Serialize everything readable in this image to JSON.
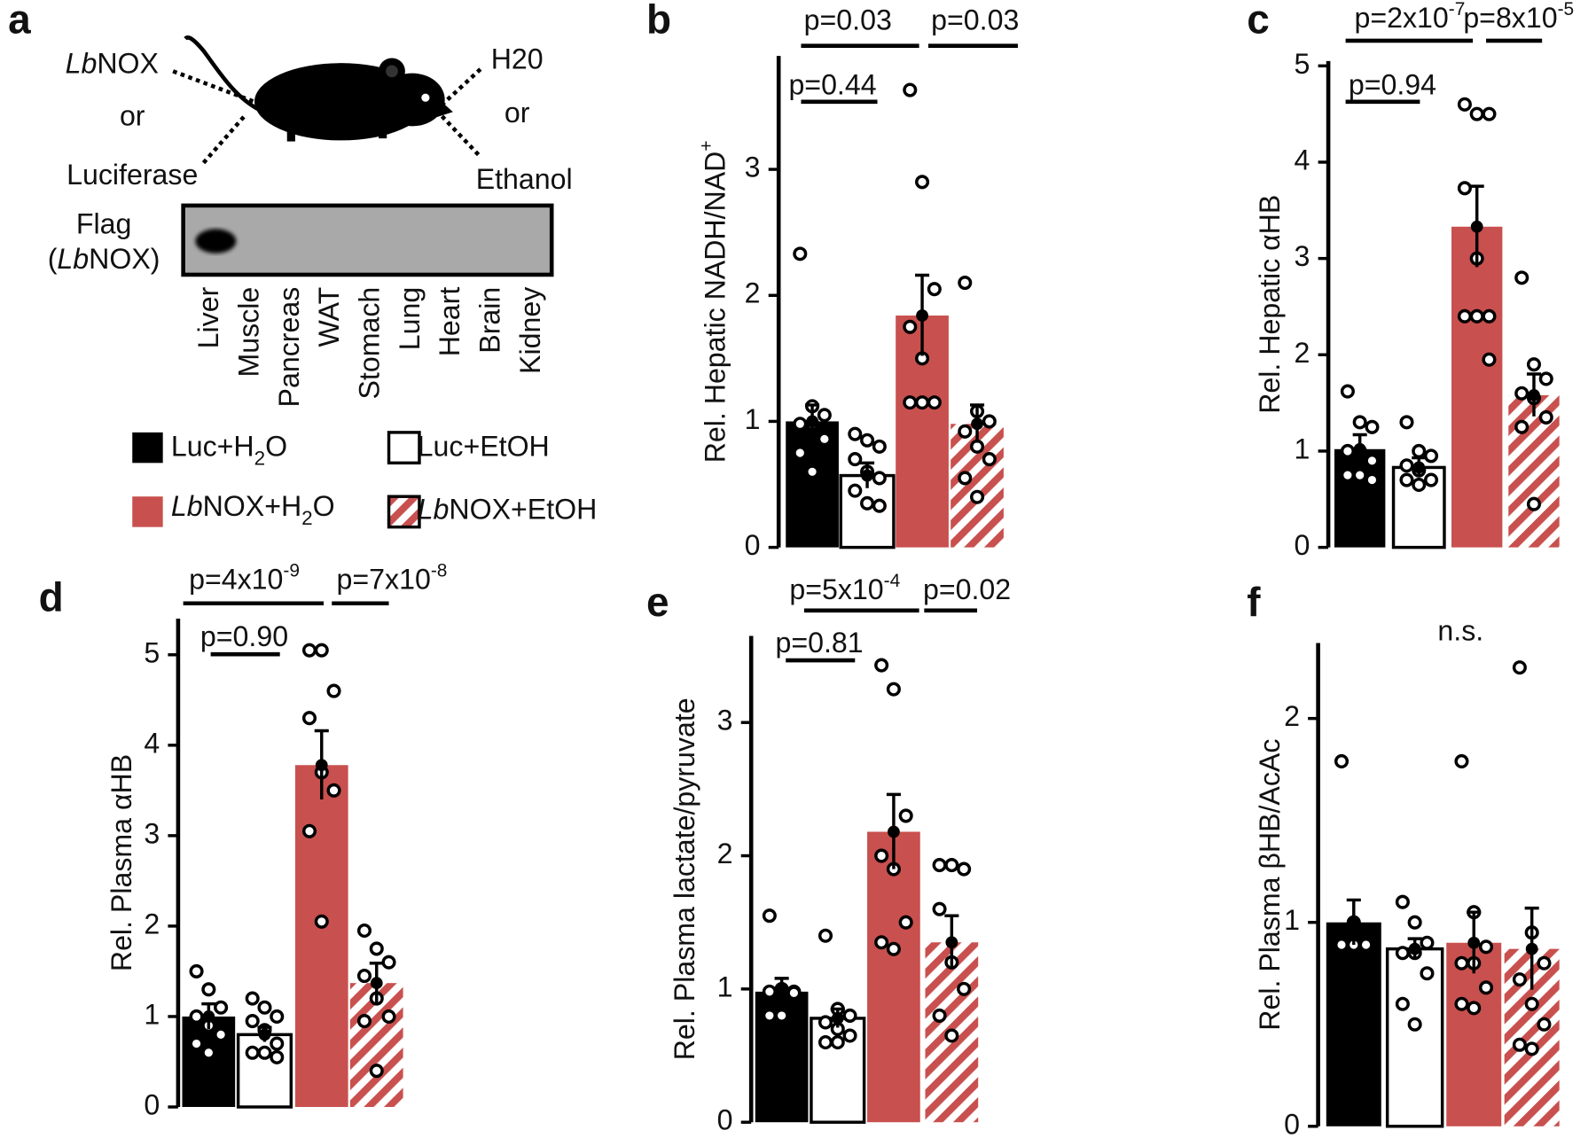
{
  "panel_a": {
    "label": "a",
    "left_top": [
      {
        "text": "Lb",
        "italic": true
      },
      {
        "text": "NOX"
      }
    ],
    "left_or": "or",
    "left_bottom": "Luciferase",
    "right_top": "H20",
    "right_or": "or",
    "right_bottom": "Ethanol",
    "blot_label_1": "Flag",
    "blot_label_2": [
      {
        "text": "("
      },
      {
        "text": "Lb",
        "italic": true
      },
      {
        "text": "NOX)"
      }
    ],
    "tissues": [
      "Liver",
      "Muscle",
      "Pancreas",
      "WAT",
      "Stomach",
      "Lung",
      "Heart",
      "Brain",
      "Kidney"
    ]
  },
  "legend": [
    {
      "label": [
        {
          "text": "Luc+H"
        },
        {
          "text": "2",
          "sub": true
        },
        {
          "text": "O"
        }
      ],
      "color": "#000000",
      "fill": "solid"
    },
    {
      "label": [
        {
          "text": "Luc+EtOH"
        }
      ],
      "color": "#ffffff",
      "fill": "outline"
    },
    {
      "label": [
        {
          "text": "Lb",
          "italic": true
        },
        {
          "text": "NOX+H"
        },
        {
          "text": "2",
          "sub": true
        },
        {
          "text": "O"
        }
      ],
      "color": "#c8504e",
      "fill": "solid"
    },
    {
      "label": [
        {
          "text": "Lb",
          "italic": true
        },
        {
          "text": "NOX+EtOH"
        }
      ],
      "color": "#c8504e",
      "fill": "hatched"
    }
  ],
  "chart_data": [
    {
      "type": "bar",
      "panel": "b",
      "ylabel": [
        {
          "text": "Rel. Hepatic NADH/NAD"
        },
        {
          "text": "+",
          "sup": true
        }
      ],
      "values": [
        1.0,
        0.57,
        1.84,
        0.98
      ],
      "errors": [
        0.13,
        0.1,
        0.32,
        0.15
      ],
      "points": [
        [
          2.33,
          1.12,
          1.05,
          0.98,
          0.98,
          0.86,
          0.75,
          0.6
        ],
        [
          0.9,
          0.85,
          0.8,
          0.7,
          0.6,
          0.55,
          0.45,
          0.35,
          0.33
        ],
        [
          3.63,
          2.9,
          2.05,
          1.75,
          1.5,
          1.15,
          1.15,
          1.15
        ],
        [
          2.1,
          1.08,
          1.0,
          0.92,
          0.8,
          0.7,
          0.55,
          0.4
        ]
      ],
      "ylim": [
        0,
        3.9
      ],
      "yticks": [
        0,
        1,
        2,
        3
      ],
      "comparisons": [
        [
          {
            "text": "p=0.03"
          }
        ],
        [
          {
            "text": "p=0.03"
          }
        ],
        [
          {
            "text": "p=0.44"
          }
        ]
      ]
    },
    {
      "type": "bar",
      "panel": "c",
      "ylabel": [
        {
          "text": "Rel. Hepatic αHB"
        }
      ],
      "values": [
        1.02,
        0.83,
        3.33,
        1.58
      ],
      "errors": [
        0.15,
        0.1,
        0.42,
        0.22
      ],
      "points": [
        [
          1.62,
          1.3,
          1.25,
          1.0,
          1.0,
          0.9,
          0.75,
          0.75,
          0.7
        ],
        [
          1.3,
          1.0,
          0.95,
          0.85,
          0.8,
          0.7,
          0.7,
          0.65
        ],
        [
          4.6,
          4.5,
          4.5,
          3.73,
          3.0,
          2.4,
          2.4,
          2.4,
          1.95
        ],
        [
          2.8,
          1.9,
          1.75,
          1.6,
          1.55,
          1.35,
          1.25,
          0.45
        ]
      ],
      "ylim": [
        0,
        5.05
      ],
      "yticks": [
        0,
        1,
        2,
        3,
        4,
        5
      ],
      "comparisons": [
        [
          {
            "text": "p=2x10"
          },
          {
            "text": "-7",
            "sup": true
          }
        ],
        [
          {
            "text": "p=8x10"
          },
          {
            "text": "-5",
            "sup": true
          }
        ],
        [
          {
            "text": "p=0.94"
          }
        ]
      ]
    },
    {
      "type": "bar",
      "panel": "d",
      "ylabel": [
        {
          "text": "Rel. Plasma αHB"
        }
      ],
      "values": [
        1.0,
        0.8,
        3.78,
        1.37
      ],
      "errors": [
        0.14,
        0.08,
        0.38,
        0.22
      ],
      "points": [
        [
          1.5,
          1.3,
          1.1,
          1.0,
          0.9,
          0.8,
          0.7,
          0.6
        ],
        [
          1.2,
          1.1,
          1.0,
          0.95,
          0.85,
          0.7,
          0.6,
          0.6,
          0.55
        ],
        [
          5.05,
          5.05,
          4.6,
          4.3,
          3.7,
          3.5,
          3.05,
          2.05
        ],
        [
          1.95,
          1.75,
          1.6,
          1.45,
          1.2,
          1.0,
          0.95,
          0.4
        ]
      ],
      "ylim": [
        0,
        5.4
      ],
      "yticks": [
        0,
        1,
        2,
        3,
        4,
        5
      ],
      "comparisons": [
        [
          {
            "text": "p=4x10"
          },
          {
            "text": "-9",
            "sup": true
          }
        ],
        [
          {
            "text": "p=7x10"
          },
          {
            "text": "-8",
            "sup": true
          }
        ],
        [
          {
            "text": "p=0.90"
          }
        ]
      ]
    },
    {
      "type": "bar",
      "panel": "e",
      "ylabel": [
        {
          "text": "Rel. Plasma lactate/pyruvate"
        }
      ],
      "values": [
        0.98,
        0.78,
        2.18,
        1.35
      ],
      "errors": [
        0.1,
        0.07,
        0.28,
        0.2
      ],
      "points": [
        [
          1.55,
          1.0,
          0.98,
          0.98,
          0.98,
          0.97,
          0.8,
          0.8
        ],
        [
          1.4,
          0.85,
          0.8,
          0.75,
          0.7,
          0.65,
          0.6,
          0.6
        ],
        [
          3.43,
          3.25,
          2.3,
          2.0,
          1.9,
          1.5,
          1.35,
          1.3
        ],
        [
          1.93,
          1.93,
          1.9,
          1.6,
          1.2,
          1.0,
          0.8,
          0.65
        ]
      ],
      "ylim": [
        0,
        3.65
      ],
      "yticks": [
        0,
        1,
        2,
        3
      ],
      "comparisons": [
        [
          {
            "text": "p=5x10"
          },
          {
            "text": "-4",
            "sup": true
          }
        ],
        [
          {
            "text": "p=0.02"
          }
        ],
        [
          {
            "text": "p=0.81"
          }
        ]
      ]
    },
    {
      "type": "bar",
      "panel": "f",
      "ylabel": [
        {
          "text": "Rel. Plasma βHB/AcAc"
        }
      ],
      "values": [
        1.0,
        0.87,
        0.9,
        0.87
      ],
      "errors": [
        0.11,
        0.05,
        0.15,
        0.2
      ],
      "points": [
        [
          1.79,
          1.0,
          0.9,
          0.89,
          0.89,
          0.89,
          0.89,
          0.89
        ],
        [
          1.1,
          1.0,
          0.9,
          0.85,
          0.85,
          0.75,
          0.6,
          0.5
        ],
        [
          1.79,
          1.05,
          0.88,
          0.8,
          0.8,
          0.68,
          0.6,
          0.58
        ],
        [
          2.25,
          0.95,
          0.8,
          0.72,
          0.6,
          0.5,
          0.4,
          0.38
        ]
      ],
      "ylim": [
        0,
        2.37
      ],
      "yticks": [
        0,
        1,
        2
      ],
      "annotation": "n.s."
    }
  ]
}
